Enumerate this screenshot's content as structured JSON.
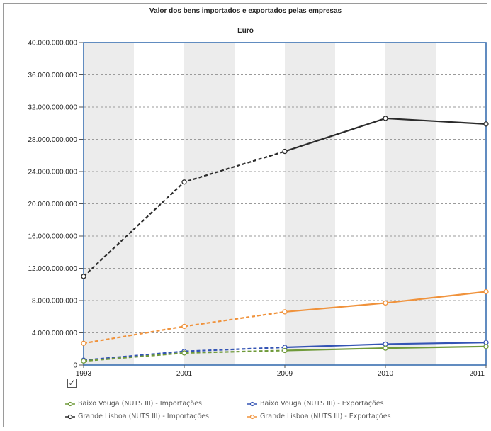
{
  "chart_data": {
    "type": "line",
    "title": "Valor dos bens importados e exportados pelas empresas",
    "subtitle": "Euro",
    "categories": [
      "1993",
      "2001",
      "2009",
      "2010",
      "2011"
    ],
    "ylim": [
      0,
      40000000000
    ],
    "yticks": [
      "0",
      "4.000.000.000",
      "8.000.000.000",
      "12.000.000.000",
      "16.000.000.000",
      "20.000.000.000",
      "24.000.000.000",
      "28.000.000.000",
      "32.000.000.000",
      "36.000.000.000",
      "40.000.000.000"
    ],
    "grid": "alternating vertical bands",
    "legend_position": "bottom",
    "series": [
      {
        "name": "Grande Lisboa (NUTS III) - Importações",
        "color": "#2b2b2b",
        "values": [
          11000000000,
          22700000000,
          26500000000,
          30600000000,
          29900000000
        ]
      },
      {
        "name": "Grande Lisboa (NUTS III) - Exportações",
        "color": "#f0923b",
        "values": [
          2700000000,
          4800000000,
          6600000000,
          7700000000,
          9100000000
        ]
      },
      {
        "name": "Baixo Vouga (NUTS III) - Exportações",
        "color": "#3454b4",
        "values": [
          600000000,
          1700000000,
          2200000000,
          2600000000,
          2800000000
        ]
      },
      {
        "name": "Baixo Vouga (NUTS III) - Importações",
        "color": "#6f9a3a",
        "values": [
          500000000,
          1500000000,
          1800000000,
          2100000000,
          2300000000
        ]
      }
    ],
    "dashed_until_index": 2
  },
  "legend": [
    {
      "label": "Baixo Vouga (NUTS III) - Importações",
      "color": "#6f9a3a"
    },
    {
      "label": "Baixo Vouga (NUTS III) - Exportações",
      "color": "#3454b4"
    },
    {
      "label": "Grande Lisboa (NUTS III) - Importações",
      "color": "#2b2b2b"
    },
    {
      "label": "Grande Lisboa (NUTS III) - Exportações",
      "color": "#f0923b"
    }
  ],
  "controls": {
    "checkbox_icon": "checkmark-icon",
    "checkbox_glyph": "✓"
  }
}
